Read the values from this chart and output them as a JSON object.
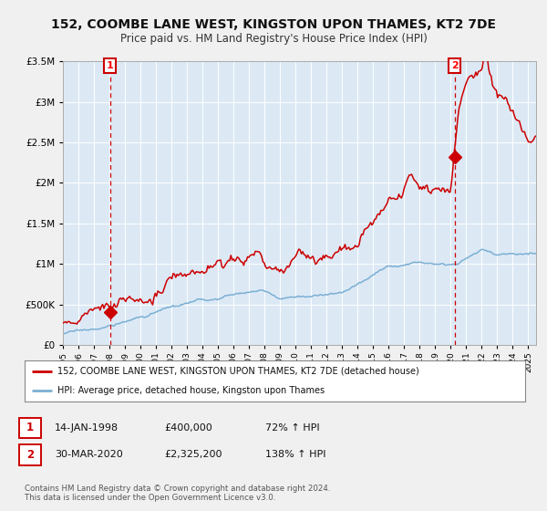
{
  "title": "152, COOMBE LANE WEST, KINGSTON UPON THAMES, KT2 7DE",
  "subtitle": "Price paid vs. HM Land Registry's House Price Index (HPI)",
  "title_fontsize": 10,
  "subtitle_fontsize": 8.5,
  "bg_color": "#dce9f5",
  "grid_color": "#ffffff",
  "ylim": [
    0,
    3500000
  ],
  "yticks": [
    0,
    500000,
    1000000,
    1500000,
    2000000,
    2500000,
    3000000,
    3500000
  ],
  "xlim_start": 1995.0,
  "xlim_end": 2025.5,
  "xtick_years": [
    1995,
    1996,
    1997,
    1998,
    1999,
    2000,
    2001,
    2002,
    2003,
    2004,
    2005,
    2006,
    2007,
    2008,
    2009,
    2010,
    2011,
    2012,
    2013,
    2014,
    2015,
    2016,
    2017,
    2018,
    2019,
    2020,
    2021,
    2022,
    2023,
    2024,
    2025
  ],
  "sale1_date": 1998.04,
  "sale1_price": 400000,
  "sale1_label": "1",
  "sale1_text": "14-JAN-1998",
  "sale1_price_text": "£400,000",
  "sale1_hpi_text": "72% ↑ HPI",
  "sale2_date": 2020.25,
  "sale2_price": 2325200,
  "sale2_label": "2",
  "sale2_text": "30-MAR-2020",
  "sale2_price_text": "£2,325,200",
  "sale2_hpi_text": "138% ↑ HPI",
  "legend_line1": "152, COOMBE LANE WEST, KINGSTON UPON THAMES, KT2 7DE (detached house)",
  "legend_line2": "HPI: Average price, detached house, Kingston upon Thames",
  "line_color_red": "#cc0000",
  "line_color_blue": "#7bafd4",
  "footer_text": "Contains HM Land Registry data © Crown copyright and database right 2024.\nThis data is licensed under the Open Government Licence v3.0.",
  "marker_color": "#cc0000",
  "fig_bg": "#f0f0f0"
}
